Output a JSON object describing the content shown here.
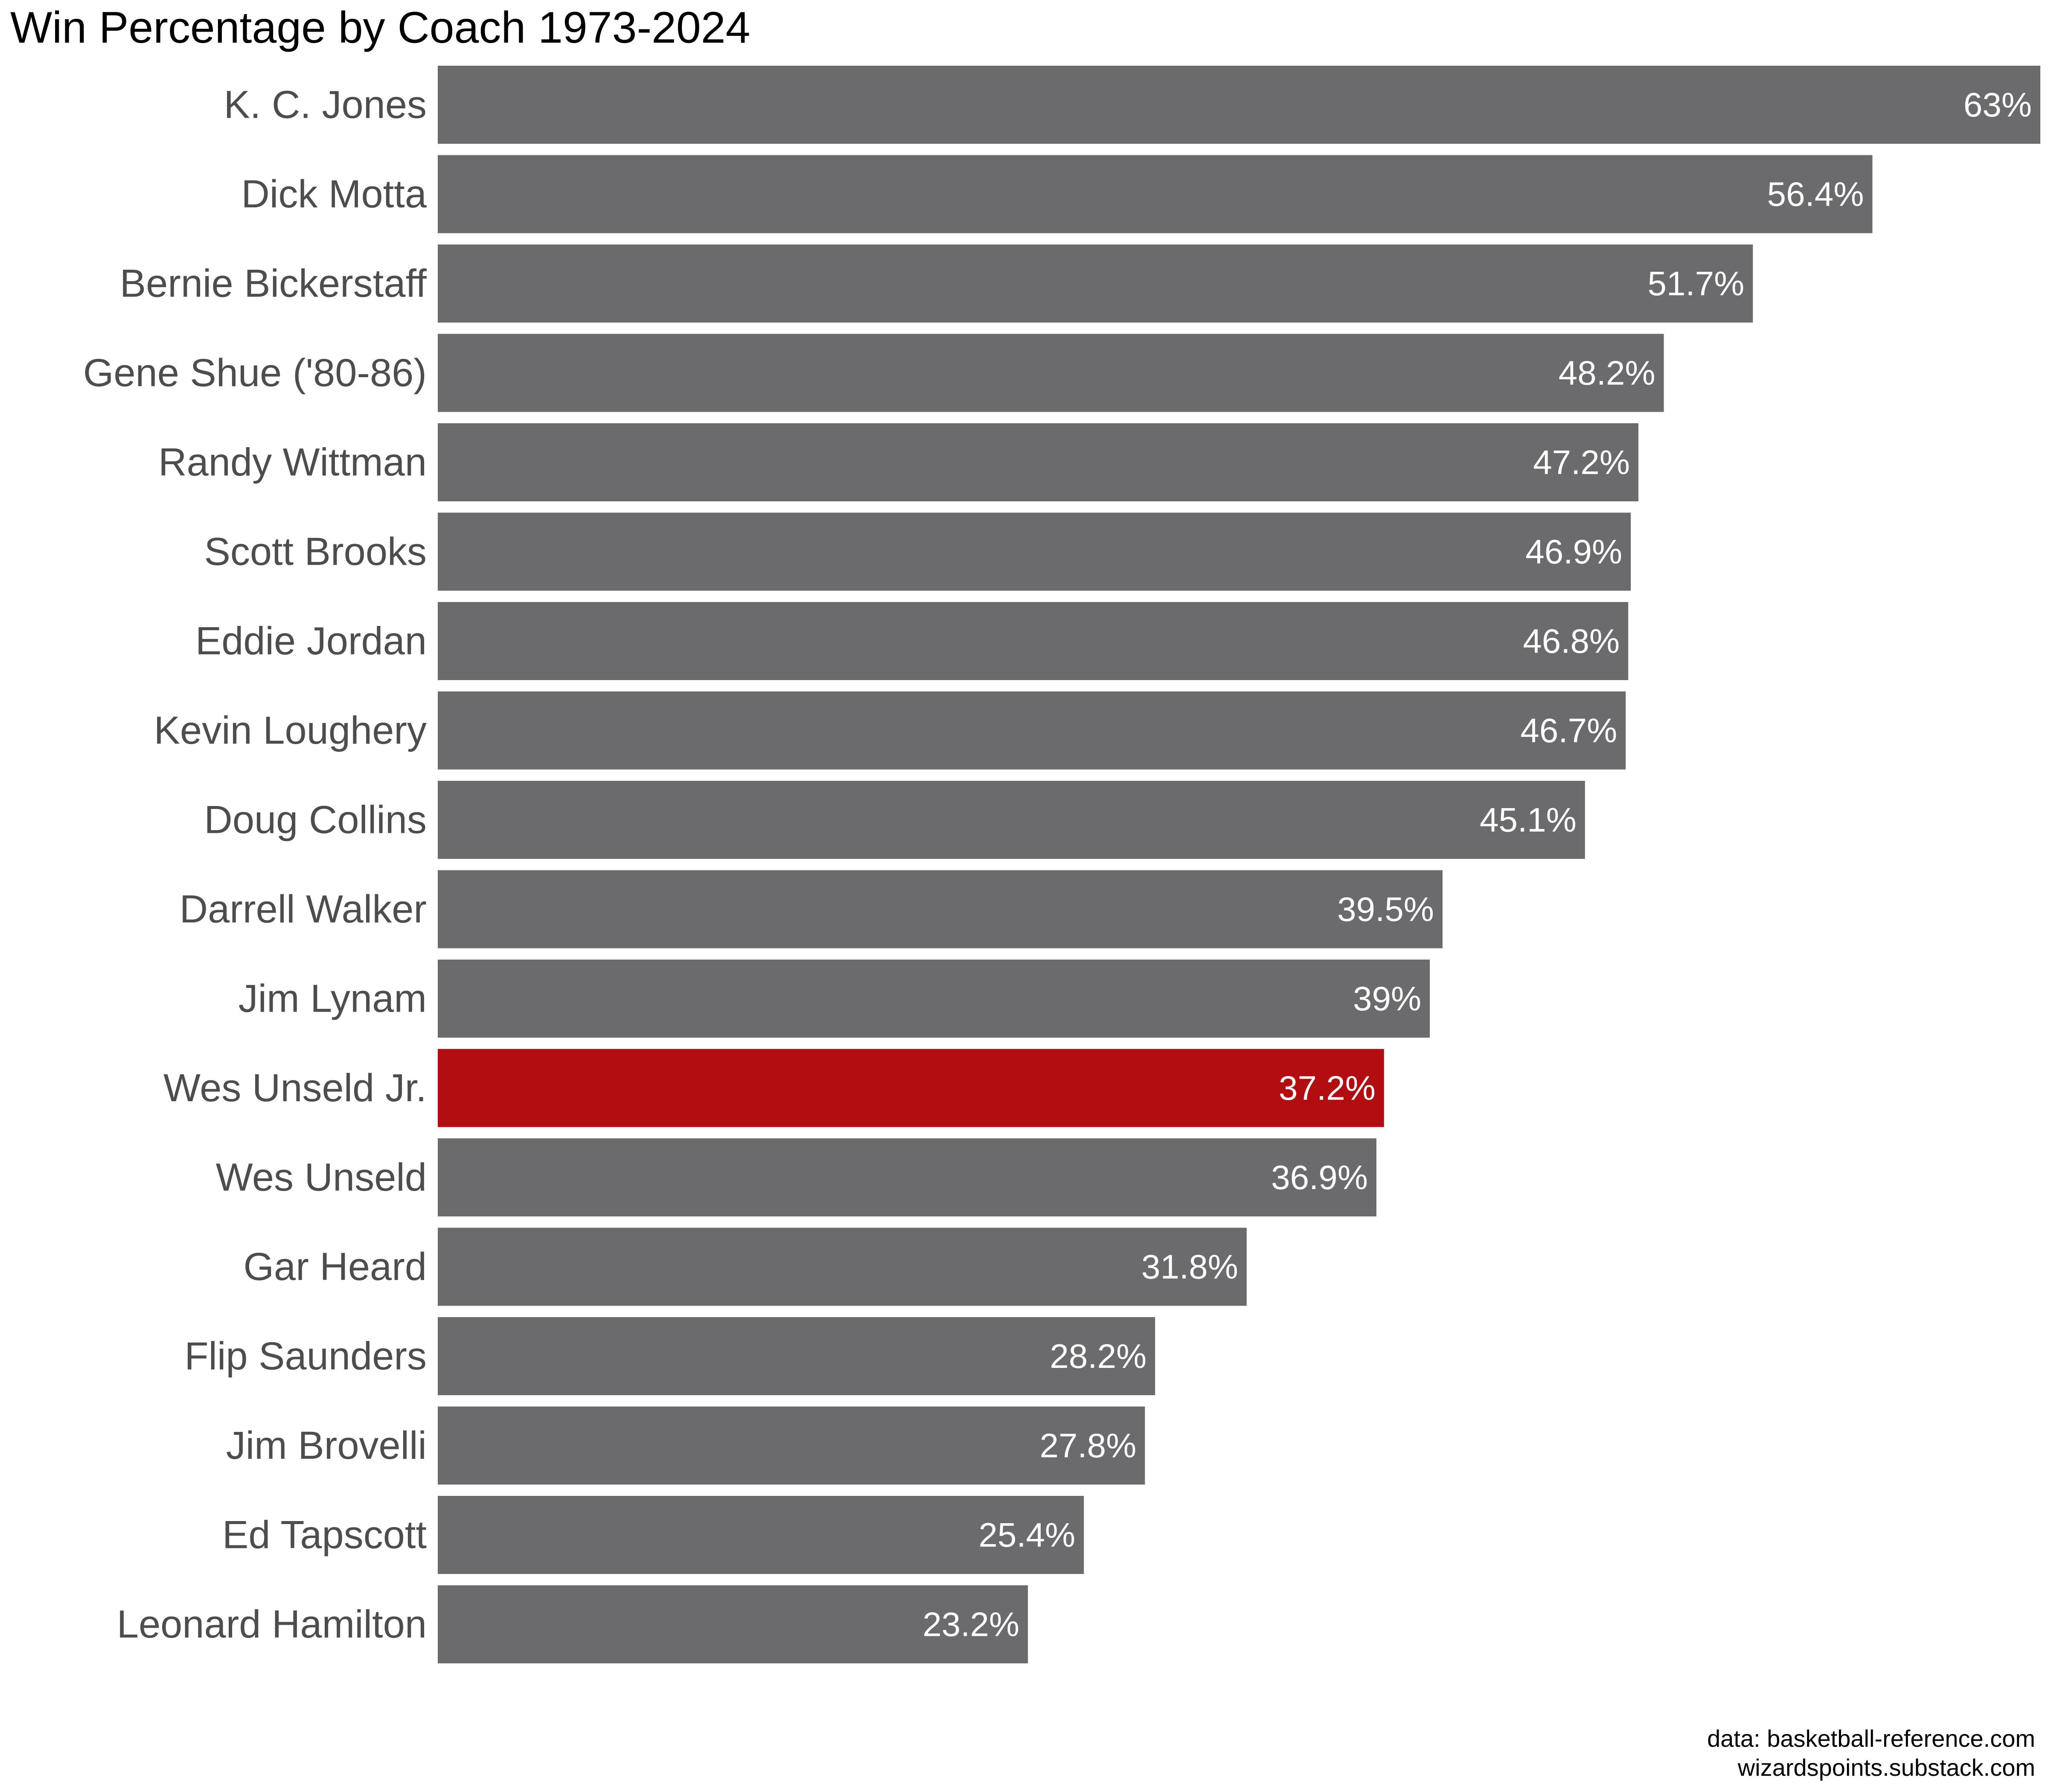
{
  "chart_data": {
    "type": "bar",
    "orientation": "horizontal",
    "title": "Win Percentage by Coach 1973-2024",
    "categories": [
      "K. C. Jones",
      "Dick Motta",
      "Bernie Bickerstaff",
      "Gene Shue ('80-86)",
      "Randy Wittman",
      "Scott Brooks",
      "Eddie Jordan",
      "Kevin Loughery",
      "Doug Collins",
      "Darrell Walker",
      "Jim Lynam",
      "Wes Unseld Jr.",
      "Wes Unseld",
      "Gar Heard",
      "Flip Saunders",
      "Jim Brovelli",
      "Ed Tapscott",
      "Leonard Hamilton"
    ],
    "values": [
      63,
      56.4,
      51.7,
      48.2,
      47.2,
      46.9,
      46.8,
      46.7,
      45.1,
      39.5,
      39,
      37.2,
      36.9,
      31.8,
      28.2,
      27.8,
      25.4,
      23.2
    ],
    "value_labels": [
      "63%",
      "56.4%",
      "51.7%",
      "48.2%",
      "47.2%",
      "46.9%",
      "46.8%",
      "46.7%",
      "45.1%",
      "39.5%",
      "39%",
      "37.2%",
      "36.9%",
      "31.8%",
      "28.2%",
      "27.8%",
      "25.4%",
      "23.2%"
    ],
    "highlight": "Wes Unseld Jr.",
    "bar_color": "#6b6b6d",
    "highlight_color": "#b20d10",
    "xlim": [
      0,
      63
    ],
    "xlabel": "",
    "ylabel": "",
    "grid": false,
    "legend": "none",
    "caption": [
      "data: basketball-reference.com",
      "wizardspoints.substack.com"
    ]
  }
}
